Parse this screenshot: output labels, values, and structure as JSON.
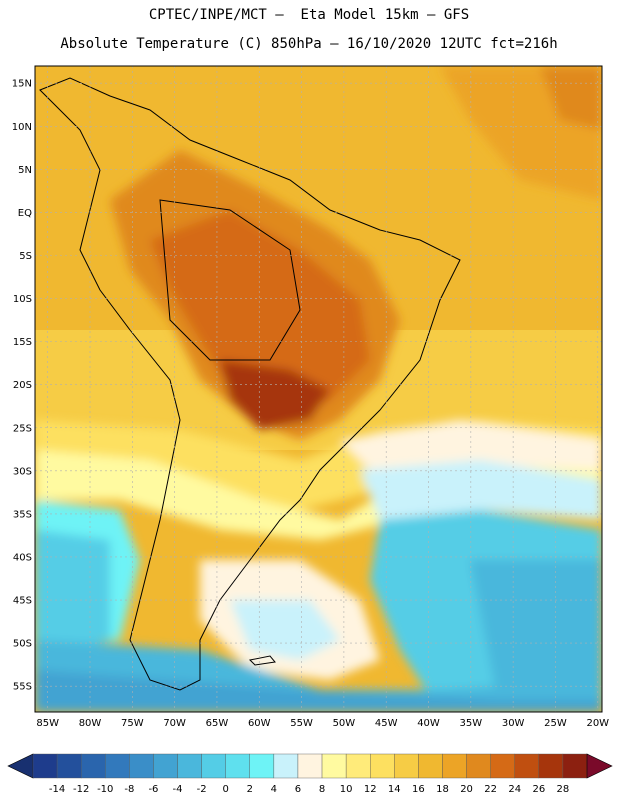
{
  "title": {
    "line1": "CPTEC/INPE/MCT –  Eta Model 15km – GFS",
    "line2": "Absolute Temperature (C) 850hPa – 16/10/2020 12UTC fct=216h"
  },
  "axes": {
    "lat_labels": [
      "15N",
      "10N",
      "5N",
      "EQ",
      "5S",
      "10S",
      "15S",
      "20S",
      "25S",
      "30S",
      "35S",
      "40S",
      "45S",
      "50S",
      "55S"
    ],
    "lat_values": [
      15,
      10,
      5,
      0,
      -5,
      -10,
      -15,
      -20,
      -25,
      -30,
      -35,
      -40,
      -45,
      -50,
      -55
    ],
    "lon_labels": [
      "85W",
      "80W",
      "75W",
      "70W",
      "65W",
      "60W",
      "55W",
      "50W",
      "45W",
      "40W",
      "35W",
      "30W",
      "25W",
      "20W"
    ],
    "lon_values": [
      -85,
      -80,
      -75,
      -70,
      -65,
      -60,
      -55,
      -50,
      -45,
      -40,
      -35,
      -30,
      -25,
      -20
    ],
    "lat_range": [
      -58,
      17
    ],
    "lon_range": [
      -86.5,
      -19.5
    ]
  },
  "colorbar": {
    "labels": [
      "-14",
      "-12",
      "-10",
      "-8",
      "-6",
      "-4",
      "-2",
      "0",
      "2",
      "4",
      "6",
      "8",
      "10",
      "12",
      "14",
      "16",
      "18",
      "20",
      "22",
      "24",
      "26",
      "28"
    ],
    "colors": [
      "#1e3c8c",
      "#23509c",
      "#2a65ad",
      "#3279bc",
      "#3a8ec8",
      "#42a3d2",
      "#4ab7dc",
      "#54cde6",
      "#5fe0ee",
      "#6ef3f6",
      "#c9f2fb",
      "#fff4e0",
      "#fffaa0",
      "#ffeb7a",
      "#fde060",
      "#f6cc45",
      "#f0b830",
      "#eca426",
      "#e0891e",
      "#d56a16",
      "#c04f10",
      "#a6350c",
      "#8c2010"
    ],
    "low_arrow": "#183070",
    "high_arrow": "#7a0a2a"
  }
}
